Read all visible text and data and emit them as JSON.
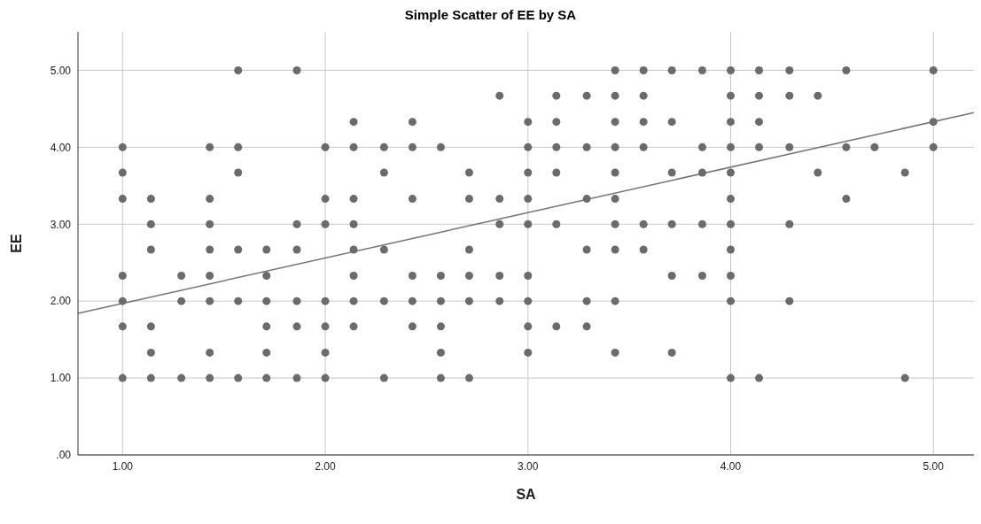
{
  "chart_data": {
    "type": "scatter",
    "title": "Simple Scatter of EE by SA",
    "xlabel": "SA",
    "ylabel": "EE",
    "xlim": [
      0.78,
      5.2
    ],
    "ylim": [
      0,
      5.5
    ],
    "xticks": [
      {
        "value": 1,
        "label": "1.00"
      },
      {
        "value": 2,
        "label": "2.00"
      },
      {
        "value": 3,
        "label": "3.00"
      },
      {
        "value": 4,
        "label": "4.00"
      },
      {
        "value": 5,
        "label": "5.00"
      }
    ],
    "yticks": [
      {
        "value": 0,
        "label": ".00"
      },
      {
        "value": 1,
        "label": "1.00"
      },
      {
        "value": 2,
        "label": "2.00"
      },
      {
        "value": 3,
        "label": "3.00"
      },
      {
        "value": 4,
        "label": "4.00"
      },
      {
        "value": 5,
        "label": "5.00"
      }
    ],
    "grid": true,
    "series": [
      {
        "color": "#6b6b6b",
        "marker": "circle",
        "x": [
          1,
          1,
          1,
          1,
          1,
          1,
          1,
          1.14,
          1.14,
          1.14,
          1.14,
          1.14,
          1.14,
          1.29,
          1.29,
          1.29,
          1.43,
          1.43,
          1.43,
          1.43,
          1.43,
          1.43,
          1.43,
          1.43,
          1.57,
          1.57,
          1.57,
          1.57,
          1.57,
          1.57,
          1.71,
          1.71,
          1.71,
          1.71,
          1.71,
          1.71,
          1.86,
          1.86,
          1.86,
          1.86,
          1.86,
          1.86,
          2,
          2,
          2,
          2,
          2,
          2,
          2,
          2.14,
          2.14,
          2.14,
          2.14,
          2.14,
          2.14,
          2.14,
          2.14,
          2.29,
          2.29,
          2.29,
          2.29,
          2.29,
          2.43,
          2.43,
          2.43,
          2.43,
          2.43,
          2.43,
          2.57,
          2.57,
          2.57,
          2.57,
          2.57,
          2.57,
          2.71,
          2.71,
          2.71,
          2.71,
          2.71,
          2.71,
          2.86,
          2.86,
          2.86,
          2.86,
          2.86,
          3,
          3,
          3,
          3,
          3,
          3,
          3,
          3,
          3,
          3.14,
          3.14,
          3.14,
          3.14,
          3.14,
          3.14,
          3.29,
          3.29,
          3.29,
          3.29,
          3.29,
          3.29,
          3.43,
          3.43,
          3.43,
          3.43,
          3.43,
          3.43,
          3.43,
          3.43,
          3.43,
          3.43,
          3.57,
          3.57,
          3.57,
          3.57,
          3.57,
          3.57,
          3.71,
          3.71,
          3.71,
          3.71,
          3.71,
          3.71,
          3.86,
          3.86,
          3.86,
          3.86,
          3.86,
          4,
          4,
          4,
          4,
          4,
          4,
          4,
          4,
          4,
          4,
          4,
          4.14,
          4.14,
          4.14,
          4.14,
          4.14,
          4.29,
          4.29,
          4.29,
          4.29,
          4.29,
          4.43,
          4.43,
          4.57,
          4.57,
          4.57,
          4.71,
          4.86,
          4.86,
          5,
          5,
          5
        ],
        "values": [
          4,
          3.67,
          3.33,
          2.33,
          2,
          1.67,
          1,
          3.33,
          3,
          2.67,
          1.67,
          1.33,
          1,
          2.33,
          2,
          1,
          4,
          3.33,
          3,
          2.67,
          2.33,
          2,
          1.33,
          1,
          5,
          4,
          3.67,
          2.67,
          2,
          1,
          2.67,
          2.33,
          2,
          1.67,
          1.33,
          1,
          5,
          3,
          2.67,
          2,
          1.67,
          1,
          4,
          3.33,
          3,
          2,
          1.67,
          1.33,
          1,
          4.33,
          4,
          3.33,
          3,
          2.67,
          2.33,
          2,
          1.67,
          4,
          3.67,
          2.67,
          2,
          1,
          4.33,
          4,
          3.33,
          2.33,
          2,
          1.67,
          4,
          2.33,
          2,
          1.67,
          1.33,
          1,
          3.67,
          3.33,
          2.67,
          2.33,
          2,
          1,
          4.67,
          3.33,
          3,
          2.33,
          2,
          4.33,
          4,
          3.67,
          3.33,
          3,
          2.33,
          2,
          1.67,
          1.33,
          4.67,
          4.33,
          4,
          3.67,
          3,
          1.67,
          4.67,
          4,
          3.33,
          2.67,
          2,
          1.67,
          5,
          4.67,
          4.33,
          4,
          3.67,
          3.33,
          3,
          2.67,
          2,
          1.33,
          5,
          4.67,
          4.33,
          4,
          3,
          2.67,
          5,
          4.33,
          3.67,
          3,
          2.33,
          1.33,
          5,
          4,
          3.67,
          3,
          2.33,
          5,
          4.67,
          4.33,
          4,
          3.67,
          3.33,
          3,
          2.67,
          2.33,
          2,
          1,
          5,
          4.67,
          4.33,
          4,
          1,
          5,
          4.67,
          4,
          3,
          2,
          4.67,
          3.67,
          5,
          4,
          3.33,
          4,
          3.67,
          1,
          5,
          4.33,
          4
        ]
      },
      {
        "type": "line",
        "color": "#737373",
        "x": [
          0.78,
          5.2
        ],
        "values": [
          1.84,
          4.45
        ]
      }
    ]
  }
}
